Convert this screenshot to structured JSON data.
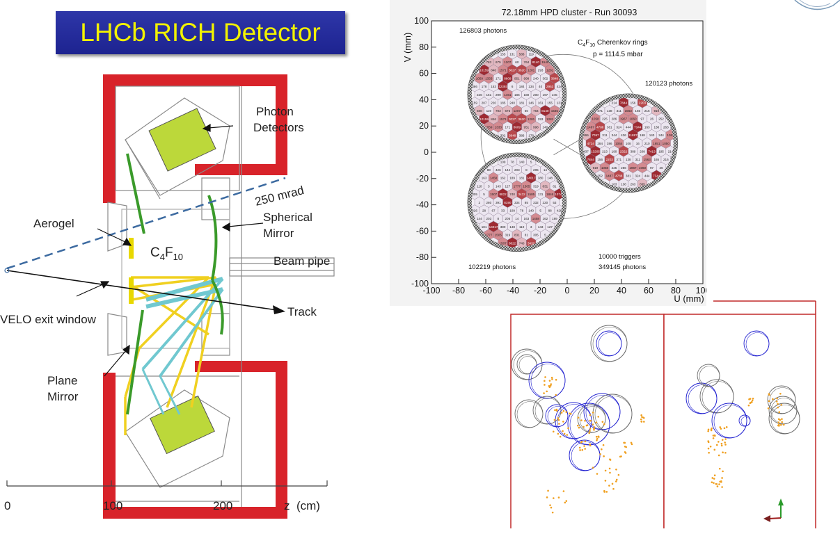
{
  "title": "LHCb RICH Detector",
  "detector": {
    "labels": {
      "photon_detectors": [
        "Photon",
        "Detectors"
      ],
      "mrad": "250 mrad",
      "spherical_mirror": [
        "Spherical",
        "Mirror"
      ],
      "aerogel": "Aerogel",
      "gas": "C",
      "gas_sub1": "4",
      "gas_mid": "F",
      "gas_sub2": "10",
      "beam_pipe": "Beam pipe",
      "track": "Track",
      "velo": "VELO exit window",
      "plane_mirror": [
        "Plane",
        "Mirror"
      ]
    },
    "axis": {
      "ticks": [
        "0",
        "100",
        "200"
      ],
      "label": "z  (cm)"
    },
    "colors": {
      "frame": "#d8232a",
      "mirror": "#3a9a2a",
      "aerogel": "#e8d800",
      "photon_detector": "#bcd83a",
      "light_yellow": "#f0d020",
      "light_cyan": "#70c8d0",
      "mrad_line": "#3c6aa0"
    }
  },
  "hpd": {
    "title": "72.18mm HPD cluster - Run 30093",
    "ylabel": "V (mm)",
    "xlabel": "U (mm)",
    "xticks": [
      "-100",
      "-80",
      "-60",
      "-40",
      "-20",
      "0",
      "20",
      "40",
      "60",
      "80",
      "100"
    ],
    "yticks": [
      "100",
      "80",
      "60",
      "40",
      "20",
      "0",
      "-20",
      "-40",
      "-60",
      "-80",
      "-100"
    ],
    "annotations": {
      "top_left": "126803 photons",
      "ring_title_c": "C",
      "ring_title_sub1": "4",
      "ring_title_f": "F",
      "ring_title_sub2": "10",
      "ring_title_rest": " Cherenkov rings",
      "pressure": "p = 1114.5 mbar",
      "right": "120123 photons",
      "bottom_left": "102219 photons",
      "triggers": "10000 triggers",
      "bottom_right": "349145 photons"
    },
    "hex_values_top": [
      "155",
      "131",
      "588",
      "119",
      "783",
      "675",
      "1207",
      "60",
      "764",
      "8140",
      "1545",
      "10159",
      "846",
      "1571",
      "3027",
      "3620",
      "1281",
      "293",
      "1281",
      "1059",
      "1333",
      "171",
      "8609",
      "951",
      "998",
      "240",
      "302",
      "3848",
      "386",
      "178",
      "153",
      "12393",
      "6",
      "184",
      "134",
      "40",
      "2953",
      "424",
      "226",
      "161",
      "299",
      "1461",
      "186",
      "180",
      "200",
      "197",
      "245",
      "159",
      "207",
      "220",
      "185",
      "240",
      "181",
      "146",
      "161"
    ],
    "hex_values_right": [
      "214",
      "7844",
      "156",
      "2203",
      "371",
      "138",
      "311",
      "1563",
      "165",
      "216",
      "919",
      "1058",
      "225",
      "286",
      "1967",
      "1060",
      "97",
      "26",
      "252",
      "1487",
      "4788",
      "381",
      "324",
      "444",
      "7344",
      "163",
      "138",
      "263",
      "865",
      "7097",
      "311",
      "344",
      "436",
      "11887",
      "168",
      "140",
      "244",
      "1362",
      "4724",
      "284",
      "386",
      "1064",
      "108",
      "16",
      "210",
      "1651",
      "1050",
      "437",
      "13205",
      "213",
      "190",
      "2322",
      "389",
      "209",
      "7413",
      "195"
    ],
    "hex_values_bottom": [
      "109",
      "78",
      "140",
      "5",
      "88",
      "426",
      "144",
      "203",
      "8",
      "205",
      "14",
      "163",
      "1458",
      "162",
      "189",
      "181",
      "14017",
      "380",
      "148",
      "110",
      "3",
      "143",
      "127",
      "1777",
      "1505",
      "319",
      "831",
      "81",
      "305",
      "5",
      "1507",
      "8822",
      "740",
      "3432",
      "1585",
      "131",
      "1846",
      "10743",
      "2",
      "280",
      "391",
      "8190",
      "334",
      "85",
      "332",
      "220",
      "53",
      "226",
      "28",
      "67",
      "33"
    ]
  },
  "events": {
    "colors": {
      "ring_blue": "#2020d0",
      "ring_gray": "#6a6a6a",
      "hits": "#f0a020",
      "frame": "#c02828",
      "axis_green": "#2a9a2a",
      "axis_red": "#a02020"
    }
  }
}
